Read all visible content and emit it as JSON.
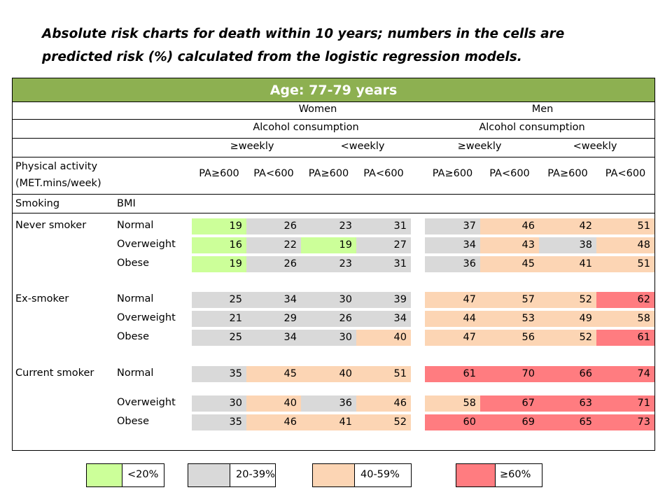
{
  "title": "Absolute risk charts for death within 10 years; numbers in the cells are\npredicted risk (%) calculated from the logistic regression models.",
  "age_header": "Age: 77-79  years",
  "sex": [
    "Women",
    "Men"
  ],
  "alcohol_label": "Alcohol consumption",
  "alcohol": [
    "≥weekly",
    "<weekly",
    "≥weekly",
    "<weekly"
  ],
  "pa_row_label": "Physical activity\n(MET.mins/week)",
  "pa": [
    "PA≥600",
    "PA<600",
    "PA≥600",
    "PA<600",
    "PA≥600",
    "PA<600",
    "PA≥600",
    "PA<600"
  ],
  "smoking_label": "Smoking",
  "bmi_label": "BMI",
  "colors": {
    "green": "#ccff99",
    "gray": "#d9d9d9",
    "peach": "#fcd5b4",
    "red": "#ff7c80",
    "header_green": "#8db051"
  },
  "groups": [
    {
      "smoking": "Never smoker",
      "rows": [
        {
          "bmi": "Normal",
          "values": [
            19,
            26,
            23,
            31,
            37,
            46,
            42,
            51
          ]
        },
        {
          "bmi": "Overweight",
          "values": [
            16,
            22,
            19,
            27,
            34,
            43,
            38,
            48
          ]
        },
        {
          "bmi": "Obese",
          "values": [
            19,
            26,
            23,
            31,
            36,
            45,
            41,
            51
          ]
        }
      ]
    },
    {
      "smoking": "Ex-smoker",
      "rows": [
        {
          "bmi": "Normal",
          "values": [
            25,
            34,
            30,
            39,
            47,
            57,
            52,
            62
          ]
        },
        {
          "bmi": "Overweight",
          "values": [
            21,
            29,
            26,
            34,
            44,
            53,
            49,
            58
          ]
        },
        {
          "bmi": "Obese",
          "values": [
            25,
            34,
            30,
            40,
            47,
            56,
            52,
            61
          ]
        }
      ]
    },
    {
      "smoking": "Current smoker",
      "rows": [
        {
          "bmi": "Normal",
          "values": [
            35,
            45,
            40,
            51,
            61,
            70,
            66,
            74
          ]
        },
        {
          "bmi": "Overweight",
          "values": [
            30,
            40,
            36,
            46,
            58,
            67,
            63,
            71
          ]
        },
        {
          "bmi": "Obese",
          "values": [
            35,
            46,
            41,
            52,
            60,
            69,
            65,
            73
          ]
        }
      ]
    }
  ],
  "cell_colors": [
    [
      "green",
      "gray",
      "gray",
      "gray",
      "gray",
      "peach",
      "peach",
      "peach"
    ],
    [
      "green",
      "gray",
      "green",
      "gray",
      "gray",
      "peach",
      "gray",
      "peach"
    ],
    [
      "green",
      "gray",
      "gray",
      "gray",
      "gray",
      "peach",
      "peach",
      "peach"
    ],
    [
      "gray",
      "gray",
      "gray",
      "gray",
      "peach",
      "peach",
      "peach",
      "red"
    ],
    [
      "gray",
      "gray",
      "gray",
      "gray",
      "peach",
      "peach",
      "peach",
      "peach"
    ],
    [
      "gray",
      "gray",
      "gray",
      "peach",
      "peach",
      "peach",
      "peach",
      "red"
    ],
    [
      "gray",
      "peach",
      "peach",
      "peach",
      "red",
      "red",
      "red",
      "red"
    ],
    [
      "gray",
      "peach",
      "gray",
      "peach",
      "peach",
      "red",
      "red",
      "red"
    ],
    [
      "gray",
      "peach",
      "peach",
      "peach",
      "red",
      "red",
      "red",
      "red"
    ]
  ],
  "legend": [
    {
      "label": "<20%",
      "color": "green"
    },
    {
      "label": "20-39%",
      "color": "gray"
    },
    {
      "label": "40-59%",
      "color": "peach"
    },
    {
      "label": "≥60%",
      "color": "red"
    }
  ]
}
